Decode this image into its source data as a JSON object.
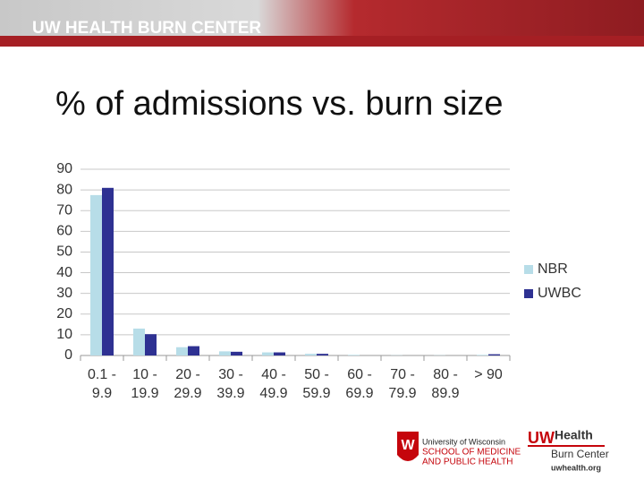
{
  "header": "UW HEALTH BURN CENTER",
  "footer": {
    "university": [
      "University of Wisconsin",
      "SCHOOL OF MEDICINE",
      "AND PUBLIC HEALTH"
    ],
    "uw": "UW",
    "health": "Health",
    "burn_center": "Burn Center",
    "url": "uwhealth.org"
  },
  "chart_data": {
    "type": "bar",
    "title": "% of admissions vs. burn size",
    "categories": [
      "0.1 - 9.9",
      "10 - 19.9",
      "20 - 29.9",
      "30 - 39.9",
      "40 - 49.9",
      "50 - 59.9",
      "60 - 69.9",
      "70 - 79.9",
      "80 - 89.9",
      "> 90"
    ],
    "series": [
      {
        "name": "NBR",
        "color": "#b7dde8",
        "values": [
          77.5,
          13,
          4,
          2,
          1.5,
          0.8,
          0.3,
          0.1,
          0.1,
          0.3
        ]
      },
      {
        "name": "UWBC",
        "color": "#2e3192",
        "values": [
          81,
          10.3,
          4.5,
          1.8,
          1.5,
          0.8,
          0,
          0,
          0,
          0.6
        ]
      }
    ],
    "ylim": [
      0,
      90
    ],
    "yticks": [
      0,
      10,
      20,
      30,
      40,
      50,
      60,
      70,
      80,
      90
    ],
    "grid": true,
    "legend": "right"
  }
}
